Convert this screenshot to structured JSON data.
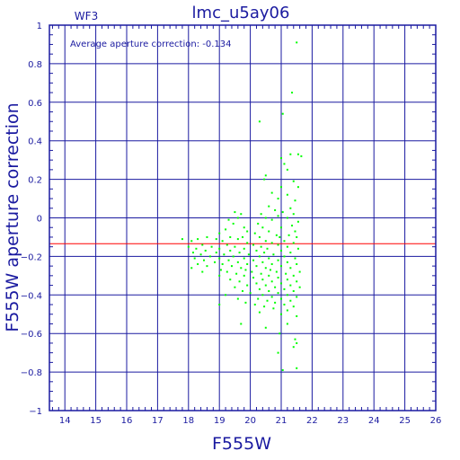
{
  "chart_data": {
    "type": "scatter",
    "title": "lmc_u5ay06",
    "subtitle": "WF3",
    "xlabel": "F555W",
    "ylabel": "F555W aperture correction",
    "annotation": "Average aperture correction: -0.134",
    "xlim": [
      13.5,
      26
    ],
    "ylim": [
      -1,
      1
    ],
    "x_ticks": [
      14,
      15,
      16,
      17,
      18,
      19,
      20,
      21,
      22,
      23,
      24,
      25,
      26
    ],
    "y_ticks": [
      -1,
      -0.8,
      -0.6,
      -0.4,
      -0.2,
      0,
      0.2,
      0.4,
      0.6,
      0.8,
      1
    ],
    "y_tick_labels": [
      "−1",
      "−0.8",
      "−0.6",
      "−0.4",
      "−0.2",
      "0",
      "0.2",
      "0.4",
      "0.6",
      "0.8",
      "1"
    ],
    "grid": true,
    "reference_line": {
      "y": -0.134,
      "color": "#ff0000"
    },
    "colors": {
      "axes": "#1a1aa0",
      "grid": "#1a1aa0",
      "points": "#00ff00",
      "reference": "#ff0000"
    },
    "series": [
      {
        "points": [
          [
            21.5,
            0.91
          ],
          [
            21.35,
            0.65
          ],
          [
            21.05,
            0.54
          ],
          [
            20.3,
            0.5
          ],
          [
            21.3,
            0.33
          ],
          [
            21.55,
            0.33
          ],
          [
            21.65,
            0.32
          ],
          [
            21.0,
            0.31
          ],
          [
            21.1,
            0.28
          ],
          [
            21.2,
            0.25
          ],
          [
            20.5,
            0.22
          ],
          [
            20.45,
            0.2
          ],
          [
            21.4,
            0.19
          ],
          [
            21.0,
            0.16
          ],
          [
            21.55,
            0.16
          ],
          [
            20.7,
            0.13
          ],
          [
            21.2,
            0.12
          ],
          [
            20.9,
            0.1
          ],
          [
            21.45,
            0.09
          ],
          [
            20.6,
            0.06
          ],
          [
            21.3,
            0.05
          ],
          [
            20.8,
            0.04
          ],
          [
            21.05,
            0.03
          ],
          [
            19.5,
            0.03
          ],
          [
            19.7,
            0.02
          ],
          [
            20.35,
            0.02
          ],
          [
            21.4,
            0.02
          ],
          [
            20.9,
            0.01
          ],
          [
            19.6,
            0.0
          ],
          [
            20.5,
            0.0
          ],
          [
            21.2,
            0.0
          ],
          [
            19.3,
            -0.01
          ],
          [
            20.7,
            -0.01
          ],
          [
            21.55,
            -0.02
          ],
          [
            19.45,
            -0.03
          ],
          [
            20.25,
            -0.03
          ],
          [
            21.35,
            -0.04
          ],
          [
            19.8,
            -0.05
          ],
          [
            20.4,
            -0.05
          ],
          [
            21.0,
            -0.05
          ],
          [
            19.2,
            -0.06
          ],
          [
            19.9,
            -0.07
          ],
          [
            20.6,
            -0.07
          ],
          [
            21.45,
            -0.07
          ],
          [
            19.0,
            -0.08
          ],
          [
            20.15,
            -0.08
          ],
          [
            20.85,
            -0.09
          ],
          [
            21.25,
            -0.09
          ],
          [
            18.6,
            -0.1
          ],
          [
            19.35,
            -0.1
          ],
          [
            19.75,
            -0.1
          ],
          [
            20.3,
            -0.1
          ],
          [
            20.95,
            -0.1
          ],
          [
            21.5,
            -0.1
          ],
          [
            17.8,
            -0.11
          ],
          [
            18.3,
            -0.11
          ],
          [
            18.9,
            -0.11
          ],
          [
            19.6,
            -0.11
          ],
          [
            20.5,
            -0.12
          ],
          [
            21.1,
            -0.12
          ],
          [
            18.1,
            -0.12
          ],
          [
            19.1,
            -0.12
          ],
          [
            19.9,
            -0.13
          ],
          [
            20.7,
            -0.13
          ],
          [
            21.4,
            -0.13
          ],
          [
            18.45,
            -0.14
          ],
          [
            19.25,
            -0.14
          ],
          [
            20.1,
            -0.14
          ],
          [
            20.9,
            -0.14
          ],
          [
            18.0,
            -0.15
          ],
          [
            18.75,
            -0.15
          ],
          [
            19.5,
            -0.15
          ],
          [
            20.35,
            -0.15
          ],
          [
            21.2,
            -0.15
          ],
          [
            18.25,
            -0.16
          ],
          [
            19.0,
            -0.16
          ],
          [
            19.8,
            -0.16
          ],
          [
            20.55,
            -0.16
          ],
          [
            21.55,
            -0.16
          ],
          [
            18.55,
            -0.17
          ],
          [
            19.35,
            -0.17
          ],
          [
            20.2,
            -0.17
          ],
          [
            21.0,
            -0.17
          ],
          [
            18.15,
            -0.18
          ],
          [
            18.9,
            -0.18
          ],
          [
            19.65,
            -0.18
          ],
          [
            20.45,
            -0.18
          ],
          [
            21.3,
            -0.18
          ],
          [
            18.4,
            -0.19
          ],
          [
            19.15,
            -0.19
          ],
          [
            19.95,
            -0.19
          ],
          [
            20.75,
            -0.19
          ],
          [
            18.7,
            -0.2
          ],
          [
            19.45,
            -0.2
          ],
          [
            20.3,
            -0.2
          ],
          [
            21.1,
            -0.2
          ],
          [
            18.2,
            -0.21
          ],
          [
            19.0,
            -0.21
          ],
          [
            19.8,
            -0.21
          ],
          [
            20.6,
            -0.21
          ],
          [
            21.45,
            -0.21
          ],
          [
            18.5,
            -0.22
          ],
          [
            19.3,
            -0.22
          ],
          [
            20.1,
            -0.22
          ],
          [
            20.9,
            -0.22
          ],
          [
            18.85,
            -0.23
          ],
          [
            19.6,
            -0.23
          ],
          [
            20.4,
            -0.23
          ],
          [
            21.2,
            -0.23
          ],
          [
            18.3,
            -0.24
          ],
          [
            19.1,
            -0.24
          ],
          [
            19.9,
            -0.24
          ],
          [
            20.7,
            -0.24
          ],
          [
            21.5,
            -0.24
          ],
          [
            18.6,
            -0.25
          ],
          [
            19.4,
            -0.25
          ],
          [
            20.2,
            -0.25
          ],
          [
            21.0,
            -0.25
          ],
          [
            18.1,
            -0.26
          ],
          [
            19.7,
            -0.26
          ],
          [
            20.5,
            -0.26
          ],
          [
            21.3,
            -0.26
          ],
          [
            19.05,
            -0.27
          ],
          [
            19.85,
            -0.27
          ],
          [
            20.65,
            -0.27
          ],
          [
            18.45,
            -0.28
          ],
          [
            19.25,
            -0.28
          ],
          [
            20.05,
            -0.28
          ],
          [
            20.85,
            -0.28
          ],
          [
            21.6,
            -0.28
          ],
          [
            19.55,
            -0.29
          ],
          [
            20.35,
            -0.29
          ],
          [
            21.15,
            -0.29
          ],
          [
            19.0,
            -0.3
          ],
          [
            19.8,
            -0.3
          ],
          [
            20.6,
            -0.3
          ],
          [
            21.4,
            -0.3
          ],
          [
            20.1,
            -0.31
          ],
          [
            20.9,
            -0.31
          ],
          [
            19.35,
            -0.32
          ],
          [
            20.4,
            -0.32
          ],
          [
            21.2,
            -0.32
          ],
          [
            19.65,
            -0.33
          ],
          [
            20.7,
            -0.33
          ],
          [
            21.5,
            -0.33
          ],
          [
            20.2,
            -0.34
          ],
          [
            21.0,
            -0.34
          ],
          [
            19.9,
            -0.35
          ],
          [
            20.5,
            -0.35
          ],
          [
            21.3,
            -0.35
          ],
          [
            19.5,
            -0.36
          ],
          [
            20.8,
            -0.36
          ],
          [
            21.6,
            -0.36
          ],
          [
            20.3,
            -0.37
          ],
          [
            21.1,
            -0.37
          ],
          [
            19.75,
            -0.38
          ],
          [
            20.6,
            -0.38
          ],
          [
            21.4,
            -0.38
          ],
          [
            20.0,
            -0.39
          ],
          [
            20.9,
            -0.39
          ],
          [
            19.2,
            -0.4
          ],
          [
            20.4,
            -0.4
          ],
          [
            21.2,
            -0.4
          ],
          [
            20.7,
            -0.41
          ],
          [
            21.5,
            -0.41
          ],
          [
            19.6,
            -0.42
          ],
          [
            20.25,
            -0.42
          ],
          [
            21.0,
            -0.42
          ],
          [
            20.55,
            -0.43
          ],
          [
            21.3,
            -0.43
          ],
          [
            19.85,
            -0.44
          ],
          [
            20.8,
            -0.44
          ],
          [
            19.0,
            -0.45
          ],
          [
            20.15,
            -0.45
          ],
          [
            21.1,
            -0.45
          ],
          [
            20.45,
            -0.46
          ],
          [
            21.4,
            -0.46
          ],
          [
            20.75,
            -0.47
          ],
          [
            21.2,
            -0.48
          ],
          [
            20.3,
            -0.49
          ],
          [
            21.0,
            -0.5
          ],
          [
            21.5,
            -0.51
          ],
          [
            19.7,
            -0.55
          ],
          [
            20.5,
            -0.57
          ],
          [
            21.2,
            -0.55
          ],
          [
            20.95,
            -0.6
          ],
          [
            21.45,
            -0.63
          ],
          [
            21.5,
            -0.65
          ],
          [
            21.4,
            -0.67
          ],
          [
            20.9,
            -0.7
          ],
          [
            21.05,
            -0.79
          ],
          [
            21.5,
            -0.78
          ]
        ]
      }
    ]
  }
}
